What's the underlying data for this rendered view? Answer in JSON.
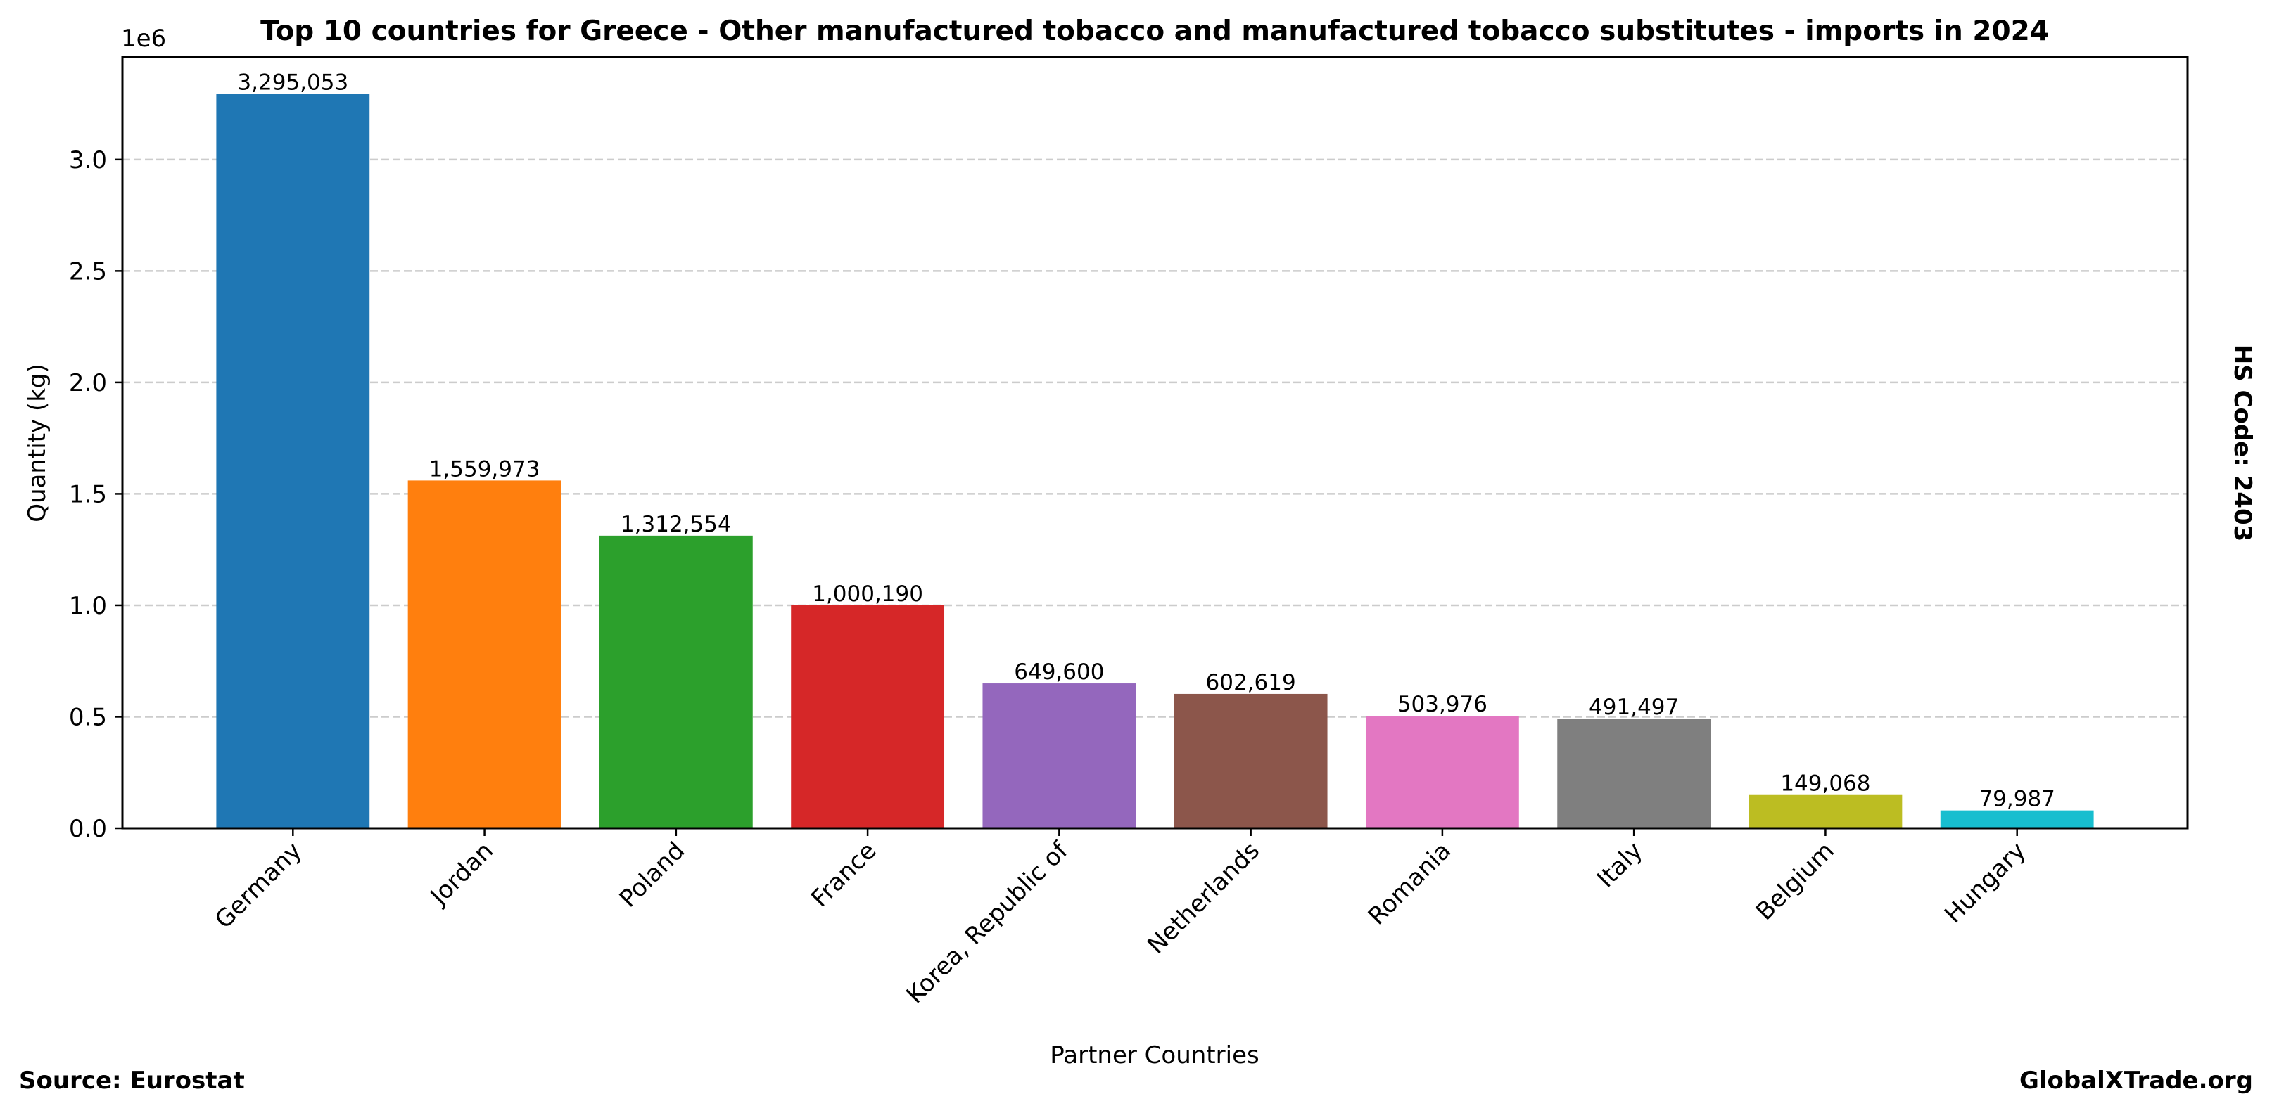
{
  "chart_data": {
    "type": "bar",
    "title": "Top 10 countries for Greece - Other manufactured tobacco and manufactured tobacco substitutes - imports in 2024",
    "xlabel": "Partner Countries",
    "ylabel": "Quantity (kg)",
    "y_offset_label": "1e6",
    "categories": [
      "Germany",
      "Jordan",
      "Poland",
      "France",
      "Korea, Republic of",
      "Netherlands",
      "Romania",
      "Italy",
      "Belgium",
      "Hungary"
    ],
    "values": [
      3295053,
      1559973,
      1312554,
      1000190,
      649600,
      602619,
      503976,
      491497,
      149068,
      79987
    ],
    "value_labels": [
      "3,295,053",
      "1,559,973",
      "1,312,554",
      "1,000,190",
      "649,600",
      "602,619",
      "503,976",
      "491,497",
      "149,068",
      "79,987"
    ],
    "colors": [
      "#1f77b4",
      "#ff7f0e",
      "#2ca02c",
      "#d62728",
      "#9467bd",
      "#8c564b",
      "#e377c2",
      "#7f7f7f",
      "#bcbd22",
      "#17becf"
    ],
    "yticks": [
      0,
      500000,
      1000000,
      1500000,
      2000000,
      2500000,
      3000000
    ],
    "ytick_labels": [
      "0.0",
      "0.5",
      "1.0",
      "1.5",
      "2.0",
      "2.5",
      "3.0"
    ],
    "ylim": [
      0,
      3460000
    ],
    "grid": true,
    "grid_axis": "y",
    "xtick_rotation_deg": 45
  },
  "footer": {
    "source": "Source: Eurostat",
    "brand": "GlobalXTrade.org"
  },
  "side_note": "HS Code: 2403"
}
